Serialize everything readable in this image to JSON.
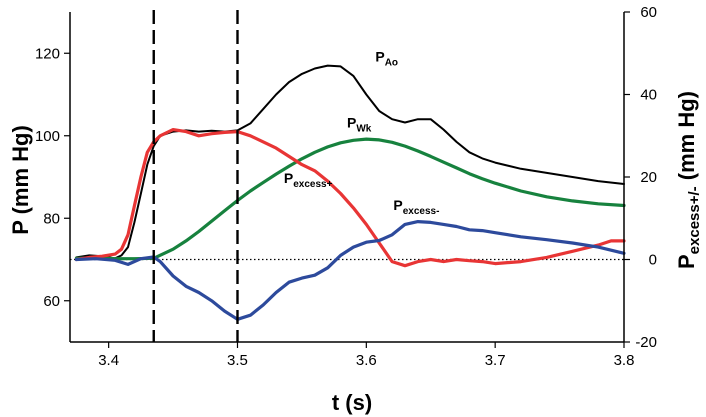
{
  "chart_data": {
    "type": "line",
    "xlabel": "t (s)",
    "ylabel_left": {
      "main": "P",
      "rest": " (mm Hg)"
    },
    "ylabel_right": {
      "main": "P",
      "sub": "excess+/-",
      "rest": " (mm Hg)"
    },
    "xlim": [
      3.37,
      3.8
    ],
    "ylim_left": [
      50,
      130
    ],
    "ylim_right": [
      -20,
      60
    ],
    "x_ticks": [
      3.4,
      3.5,
      3.6,
      3.7,
      3.8
    ],
    "x_tick_labels": [
      "3.4",
      "3.5",
      "3.6",
      "3.7",
      "3.8"
    ],
    "y_left_ticks": [
      60,
      80,
      100,
      120
    ],
    "y_left_tick_labels": [
      "60",
      "80",
      "100",
      "120"
    ],
    "y_right_ticks": [
      -20,
      0,
      20,
      40,
      60
    ],
    "y_right_tick_labels": [
      "-20",
      "0",
      "20",
      "40",
      "60"
    ],
    "vertical_dashed_lines": [
      3.435,
      3.5
    ],
    "reference_hline": {
      "axis": "right",
      "y": 0,
      "style": "dotted"
    },
    "grid": false,
    "annotations": [
      {
        "main": "P",
        "sub": "Ao",
        "x": 3.607,
        "y": 118,
        "axis": "left"
      },
      {
        "main": "P",
        "sub": "Wk",
        "x": 3.585,
        "y": 102,
        "axis": "left"
      },
      {
        "main": "P",
        "sub": "excess+",
        "x": 3.536,
        "y": 88.5,
        "axis": "left"
      },
      {
        "main": "P",
        "sub": "excess-",
        "x": 3.621,
        "y": 82,
        "axis": "left"
      }
    ],
    "series": [
      {
        "key": "PAo",
        "axis": "left",
        "color": "#000000",
        "points": [
          [
            3.375,
            70.5
          ],
          [
            3.385,
            71
          ],
          [
            3.395,
            70.8
          ],
          [
            3.405,
            70.3
          ],
          [
            3.41,
            71
          ],
          [
            3.415,
            73
          ],
          [
            3.42,
            79
          ],
          [
            3.425,
            86
          ],
          [
            3.43,
            93
          ],
          [
            3.435,
            97.5
          ],
          [
            3.44,
            100
          ],
          [
            3.45,
            101
          ],
          [
            3.46,
            101.3
          ],
          [
            3.47,
            101
          ],
          [
            3.48,
            101.2
          ],
          [
            3.49,
            101
          ],
          [
            3.5,
            101.3
          ],
          [
            3.51,
            103
          ],
          [
            3.52,
            106.5
          ],
          [
            3.53,
            110
          ],
          [
            3.54,
            113
          ],
          [
            3.55,
            115
          ],
          [
            3.56,
            116.3
          ],
          [
            3.57,
            117
          ],
          [
            3.58,
            116.8
          ],
          [
            3.59,
            114.5
          ],
          [
            3.6,
            110
          ],
          [
            3.61,
            106
          ],
          [
            3.62,
            104
          ],
          [
            3.63,
            103.2
          ],
          [
            3.64,
            104
          ],
          [
            3.65,
            104
          ],
          [
            3.66,
            101.5
          ],
          [
            3.67,
            98.5
          ],
          [
            3.68,
            96
          ],
          [
            3.69,
            94.5
          ],
          [
            3.7,
            93.5
          ],
          [
            3.72,
            92
          ],
          [
            3.74,
            91
          ],
          [
            3.76,
            90
          ],
          [
            3.78,
            89
          ],
          [
            3.8,
            88.3
          ]
        ]
      },
      {
        "key": "PWk",
        "axis": "left",
        "color": "#17823e",
        "points": [
          [
            3.375,
            70.3
          ],
          [
            3.39,
            70.4
          ],
          [
            3.405,
            70.2
          ],
          [
            3.42,
            70.2
          ],
          [
            3.435,
            70.3
          ],
          [
            3.45,
            72.5
          ],
          [
            3.46,
            74.5
          ],
          [
            3.47,
            76.8
          ],
          [
            3.48,
            79.3
          ],
          [
            3.49,
            81.8
          ],
          [
            3.5,
            84.3
          ],
          [
            3.51,
            86.6
          ],
          [
            3.52,
            88.7
          ],
          [
            3.53,
            90.7
          ],
          [
            3.54,
            92.6
          ],
          [
            3.55,
            94.4
          ],
          [
            3.56,
            96
          ],
          [
            3.57,
            97.3
          ],
          [
            3.58,
            98.3
          ],
          [
            3.59,
            98.9
          ],
          [
            3.6,
            99.2
          ],
          [
            3.61,
            99
          ],
          [
            3.62,
            98.4
          ],
          [
            3.63,
            97.5
          ],
          [
            3.64,
            96.3
          ],
          [
            3.65,
            95
          ],
          [
            3.66,
            93.6
          ],
          [
            3.67,
            92.2
          ],
          [
            3.68,
            90.8
          ],
          [
            3.69,
            89.6
          ],
          [
            3.7,
            88.5
          ],
          [
            3.72,
            86.6
          ],
          [
            3.74,
            85.2
          ],
          [
            3.76,
            84.2
          ],
          [
            3.78,
            83.5
          ],
          [
            3.8,
            83.1
          ]
        ]
      },
      {
        "key": "Pexcess+",
        "axis": "right",
        "color": "#e83535",
        "points": [
          [
            3.375,
            0
          ],
          [
            3.385,
            0.5
          ],
          [
            3.395,
            0.8
          ],
          [
            3.405,
            1.3
          ],
          [
            3.41,
            2.5
          ],
          [
            3.415,
            6
          ],
          [
            3.42,
            13
          ],
          [
            3.425,
            20
          ],
          [
            3.43,
            26
          ],
          [
            3.435,
            28.5
          ],
          [
            3.44,
            30
          ],
          [
            3.45,
            31.5
          ],
          [
            3.46,
            31
          ],
          [
            3.47,
            30
          ],
          [
            3.48,
            30.5
          ],
          [
            3.49,
            30.8
          ],
          [
            3.5,
            31
          ],
          [
            3.51,
            30
          ],
          [
            3.52,
            28.5
          ],
          [
            3.53,
            27
          ],
          [
            3.54,
            25
          ],
          [
            3.55,
            23
          ],
          [
            3.56,
            21.5
          ],
          [
            3.57,
            19
          ],
          [
            3.58,
            16
          ],
          [
            3.59,
            12.5
          ],
          [
            3.6,
            8.5
          ],
          [
            3.61,
            4
          ],
          [
            3.62,
            -0.5
          ],
          [
            3.63,
            -1.5
          ],
          [
            3.64,
            -0.5
          ],
          [
            3.65,
            0
          ],
          [
            3.66,
            -0.5
          ],
          [
            3.67,
            0
          ],
          [
            3.68,
            -0.3
          ],
          [
            3.69,
            -0.5
          ],
          [
            3.7,
            -1
          ],
          [
            3.72,
            -0.5
          ],
          [
            3.74,
            0.5
          ],
          [
            3.76,
            2
          ],
          [
            3.78,
            3.5
          ],
          [
            3.79,
            4.5
          ],
          [
            3.8,
            4.5
          ]
        ]
      },
      {
        "key": "Pexcess-",
        "axis": "right",
        "color": "#2d4a9c",
        "points": [
          [
            3.375,
            0
          ],
          [
            3.39,
            0.2
          ],
          [
            3.405,
            -0.2
          ],
          [
            3.415,
            -1.2
          ],
          [
            3.425,
            0.2
          ],
          [
            3.435,
            0.6
          ],
          [
            3.44,
            -0.5
          ],
          [
            3.45,
            -4
          ],
          [
            3.46,
            -6.5
          ],
          [
            3.47,
            -8
          ],
          [
            3.48,
            -10
          ],
          [
            3.49,
            -12.5
          ],
          [
            3.5,
            -14.5
          ],
          [
            3.51,
            -13.5
          ],
          [
            3.52,
            -11
          ],
          [
            3.53,
            -8
          ],
          [
            3.54,
            -5.5
          ],
          [
            3.55,
            -4.5
          ],
          [
            3.56,
            -3.8
          ],
          [
            3.57,
            -2
          ],
          [
            3.58,
            1
          ],
          [
            3.59,
            3
          ],
          [
            3.6,
            4.2
          ],
          [
            3.61,
            4.6
          ],
          [
            3.62,
            6
          ],
          [
            3.63,
            8.5
          ],
          [
            3.64,
            9.2
          ],
          [
            3.65,
            9
          ],
          [
            3.66,
            8.5
          ],
          [
            3.67,
            8
          ],
          [
            3.68,
            7.2
          ],
          [
            3.69,
            7
          ],
          [
            3.7,
            6.5
          ],
          [
            3.72,
            5.5
          ],
          [
            3.74,
            4.8
          ],
          [
            3.76,
            4
          ],
          [
            3.78,
            3
          ],
          [
            3.8,
            1.5
          ]
        ]
      }
    ]
  }
}
